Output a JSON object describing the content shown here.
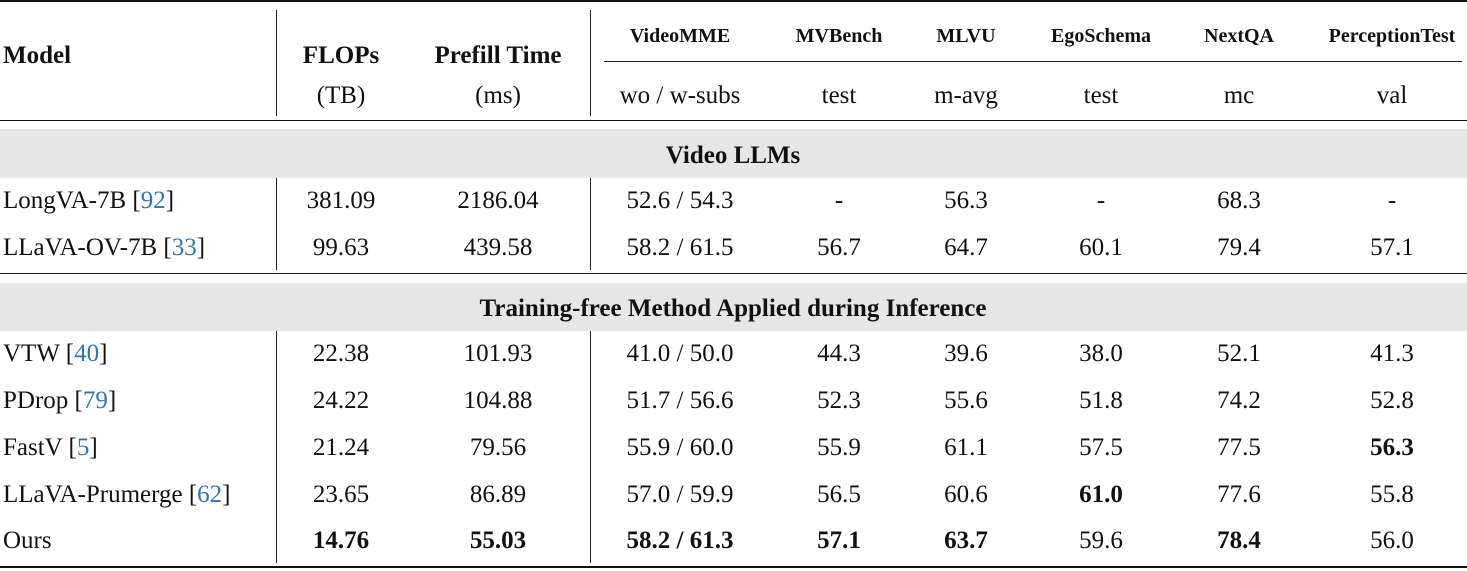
{
  "header": {
    "model": "Model",
    "flops": "FLOPs",
    "flops_unit": "(TB)",
    "prefill": "Prefill Time",
    "prefill_unit": "(ms)",
    "benchmarks": [
      {
        "name": "VideoMME",
        "metric": "wo / w-subs"
      },
      {
        "name": "MVBench",
        "metric": "test"
      },
      {
        "name": "MLVU",
        "metric": "m-avg"
      },
      {
        "name": "EgoSchema",
        "metric": "test"
      },
      {
        "name": "NextQA",
        "metric": "mc"
      },
      {
        "name": "PerceptionTest",
        "metric": "val"
      }
    ]
  },
  "sections": [
    {
      "title": "Video LLMs",
      "rows": [
        {
          "name": "LongVA-7B",
          "ref": "92",
          "flops": "381.09",
          "prefill": "2186.04",
          "vmme_wo": "52.6",
          "vmme_w": "54.3",
          "mvbench": "-",
          "mlvu": "56.3",
          "ego": "-",
          "nextqa": "68.3",
          "perc": "-"
        },
        {
          "name": "LLaVA-OV-7B",
          "ref": "33",
          "flops": "99.63",
          "prefill": "439.58",
          "vmme_wo": "58.2",
          "vmme_w": "61.5",
          "mvbench": "56.7",
          "mlvu": "64.7",
          "ego": "60.1",
          "nextqa": "79.4",
          "perc": "57.1"
        }
      ]
    },
    {
      "title": "Training-free Method Applied during Inference",
      "rows": [
        {
          "name": "VTW",
          "ref": "40",
          "flops": "22.38",
          "prefill": "101.93",
          "vmme_wo": "41.0",
          "vmme_w": "50.0",
          "mvbench": "44.3",
          "mlvu": "39.6",
          "ego": "38.0",
          "nextqa": "52.1",
          "perc": "41.3"
        },
        {
          "name": "PDrop",
          "ref": "79",
          "flops": "24.22",
          "prefill": "104.88",
          "vmme_wo": "51.7",
          "vmme_w": "56.6",
          "mvbench": "52.3",
          "mlvu": "55.6",
          "ego": "51.8",
          "nextqa": "74.2",
          "perc": "52.8"
        },
        {
          "name": "FastV",
          "ref": "5",
          "flops": "21.24",
          "prefill": "79.56",
          "vmme_wo": "55.9",
          "vmme_w": "60.0",
          "mvbench": "55.9",
          "mlvu": "61.1",
          "ego": "57.5",
          "nextqa": "77.5",
          "perc": "56.3"
        },
        {
          "name": "LLaVA-Prumerge",
          "ref": "62",
          "flops": "23.65",
          "prefill": "86.89",
          "vmme_wo": "57.0",
          "vmme_w": "59.9",
          "mvbench": "56.5",
          "mlvu": "60.6",
          "ego": "61.0",
          "nextqa": "77.6",
          "perc": "55.8"
        },
        {
          "name": "Ours",
          "ref": "",
          "flops": "14.76",
          "prefill": "55.03",
          "vmme_wo": "58.2",
          "vmme_w": "61.3",
          "mvbench": "57.1",
          "mlvu": "63.7",
          "ego": "59.6",
          "nextqa": "78.4",
          "perc": "56.0"
        }
      ]
    }
  ],
  "bold_cells": [
    [
      "1.2",
      "perc"
    ],
    [
      "1.3",
      "ego"
    ],
    [
      "1.4",
      "flops"
    ],
    [
      "1.4",
      "prefill"
    ],
    [
      "1.4",
      "vmme_wo"
    ],
    [
      "1.4",
      "vmme_w"
    ],
    [
      "1.4",
      "mvbench"
    ],
    [
      "1.4",
      "mlvu"
    ],
    [
      "1.4",
      "nextqa"
    ]
  ]
}
